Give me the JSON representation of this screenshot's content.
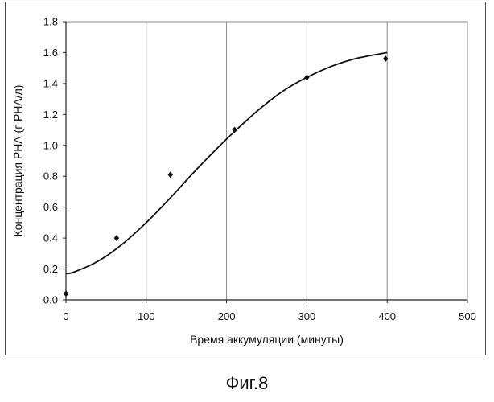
{
  "figure": {
    "caption": "Фиг.8"
  },
  "chart_data": {
    "type": "scatter",
    "title": "",
    "xlabel": "Время аккумуляции  (минуты)",
    "ylabel": "Концентрация РНА (г-РНА/л)",
    "xlim": [
      0,
      500
    ],
    "ylim": [
      0.0,
      1.8
    ],
    "xticks": [
      0,
      100,
      200,
      300,
      400,
      500
    ],
    "yticks": [
      0.0,
      0.2,
      0.4,
      0.6,
      0.8,
      1.0,
      1.2,
      1.4,
      1.6,
      1.8
    ],
    "ytick_labels": [
      "0.0",
      "0.2",
      "0.4",
      "0.6",
      "0.8",
      "1.0",
      "1.2",
      "1.4",
      "1.6",
      "1.8"
    ],
    "grid": {
      "vertical": true,
      "horizontal": false
    },
    "legend": "none",
    "series": [
      {
        "kind": "markers",
        "marker": "diamond",
        "x": [
          0,
          63,
          130,
          210,
          300,
          398
        ],
        "y": [
          0.04,
          0.4,
          0.81,
          1.1,
          1.44,
          1.56
        ]
      },
      {
        "kind": "line",
        "x": [
          0,
          10,
          40,
          70,
          100,
          130,
          160,
          190,
          210,
          240,
          270,
          300,
          330,
          360,
          400
        ],
        "y": [
          0.17,
          0.18,
          0.25,
          0.36,
          0.5,
          0.66,
          0.83,
          0.99,
          1.09,
          1.23,
          1.35,
          1.44,
          1.51,
          1.56,
          1.6
        ]
      }
    ],
    "colors": {
      "line": "#111111",
      "markers": "#111111",
      "grid": "#8a8a8a",
      "frame": "#4a4a4a"
    }
  }
}
